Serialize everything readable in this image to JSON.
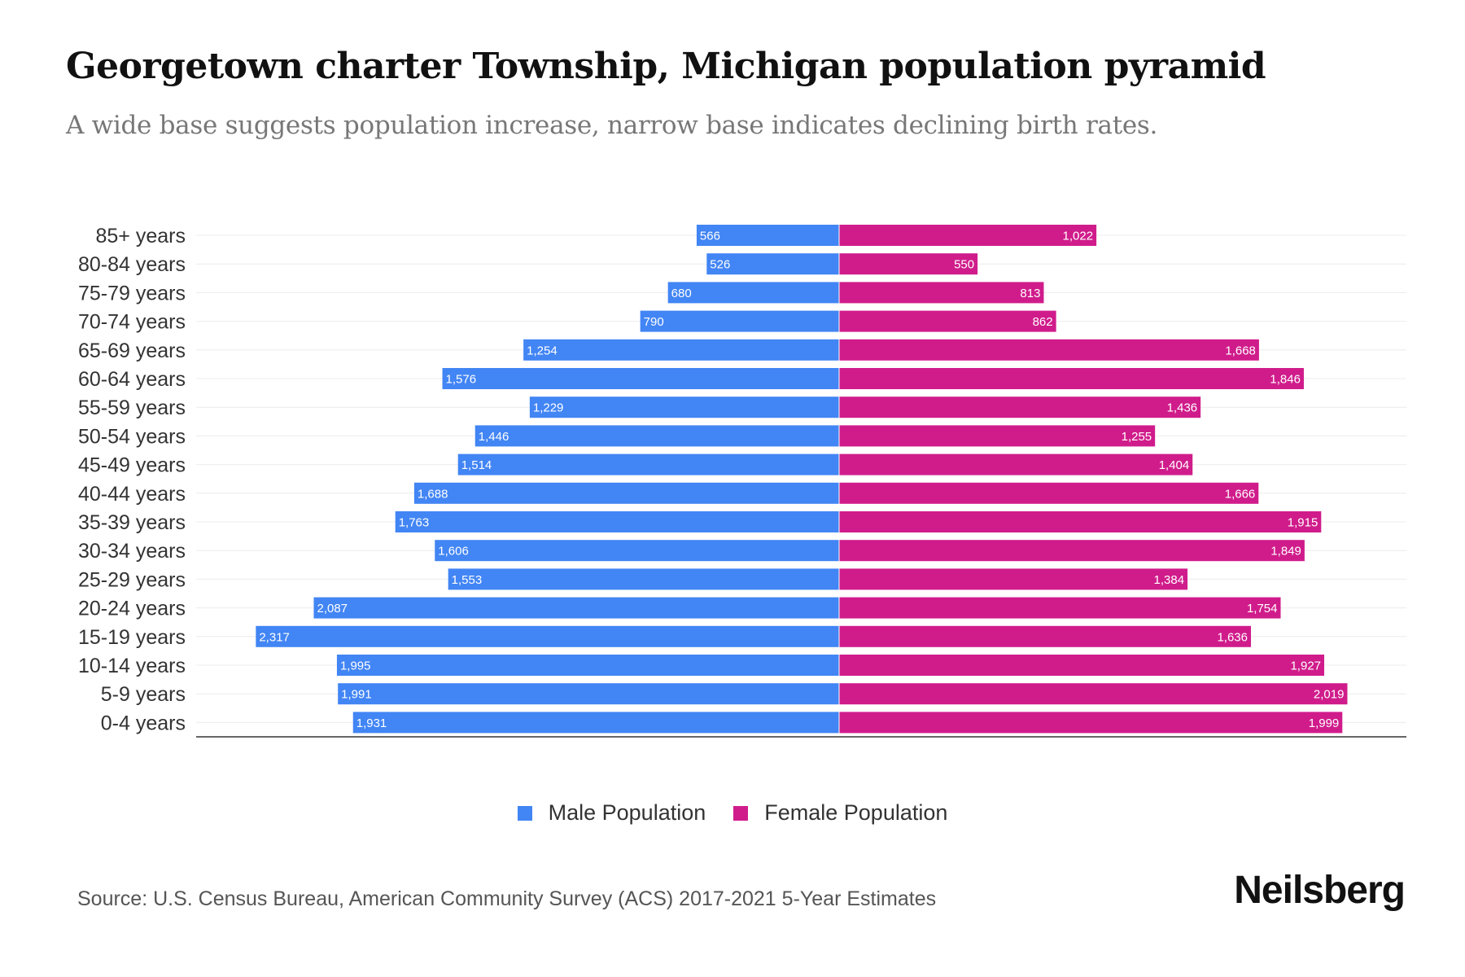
{
  "colors": {
    "male": "#4285F4",
    "female": "#D01C8B"
  },
  "brand": "Neilsberg",
  "source": "Source: U.S. Census Bureau, American Community Survey (ACS) 2017-2021 5-Year Estimates",
  "chart_data": {
    "type": "bar",
    "orientation": "horizontal-pyramid",
    "title": "Georgetown charter Township, Michigan population pyramid",
    "subtitle": "A wide base suggests population increase, narrow base indicates declining birth rates.",
    "categories": [
      "85+ years",
      "80-84 years",
      "75-79 years",
      "70-74 years",
      "65-69 years",
      "60-64 years",
      "55-59 years",
      "50-54 years",
      "45-49 years",
      "40-44 years",
      "35-39 years",
      "30-34 years",
      "25-29 years",
      "20-24 years",
      "15-19 years",
      "10-14 years",
      "5-9 years",
      "0-4 years"
    ],
    "series": [
      {
        "name": "Male Population",
        "values": [
          566,
          526,
          680,
          790,
          1254,
          1576,
          1229,
          1446,
          1514,
          1688,
          1763,
          1606,
          1553,
          2087,
          2317,
          1995,
          1991,
          1931
        ]
      },
      {
        "name": "Female Population",
        "values": [
          1022,
          550,
          813,
          862,
          1668,
          1846,
          1436,
          1255,
          1404,
          1666,
          1915,
          1849,
          1384,
          1754,
          1636,
          1927,
          2019,
          1999
        ]
      }
    ],
    "legend": "bottom-center",
    "grid": true
  }
}
